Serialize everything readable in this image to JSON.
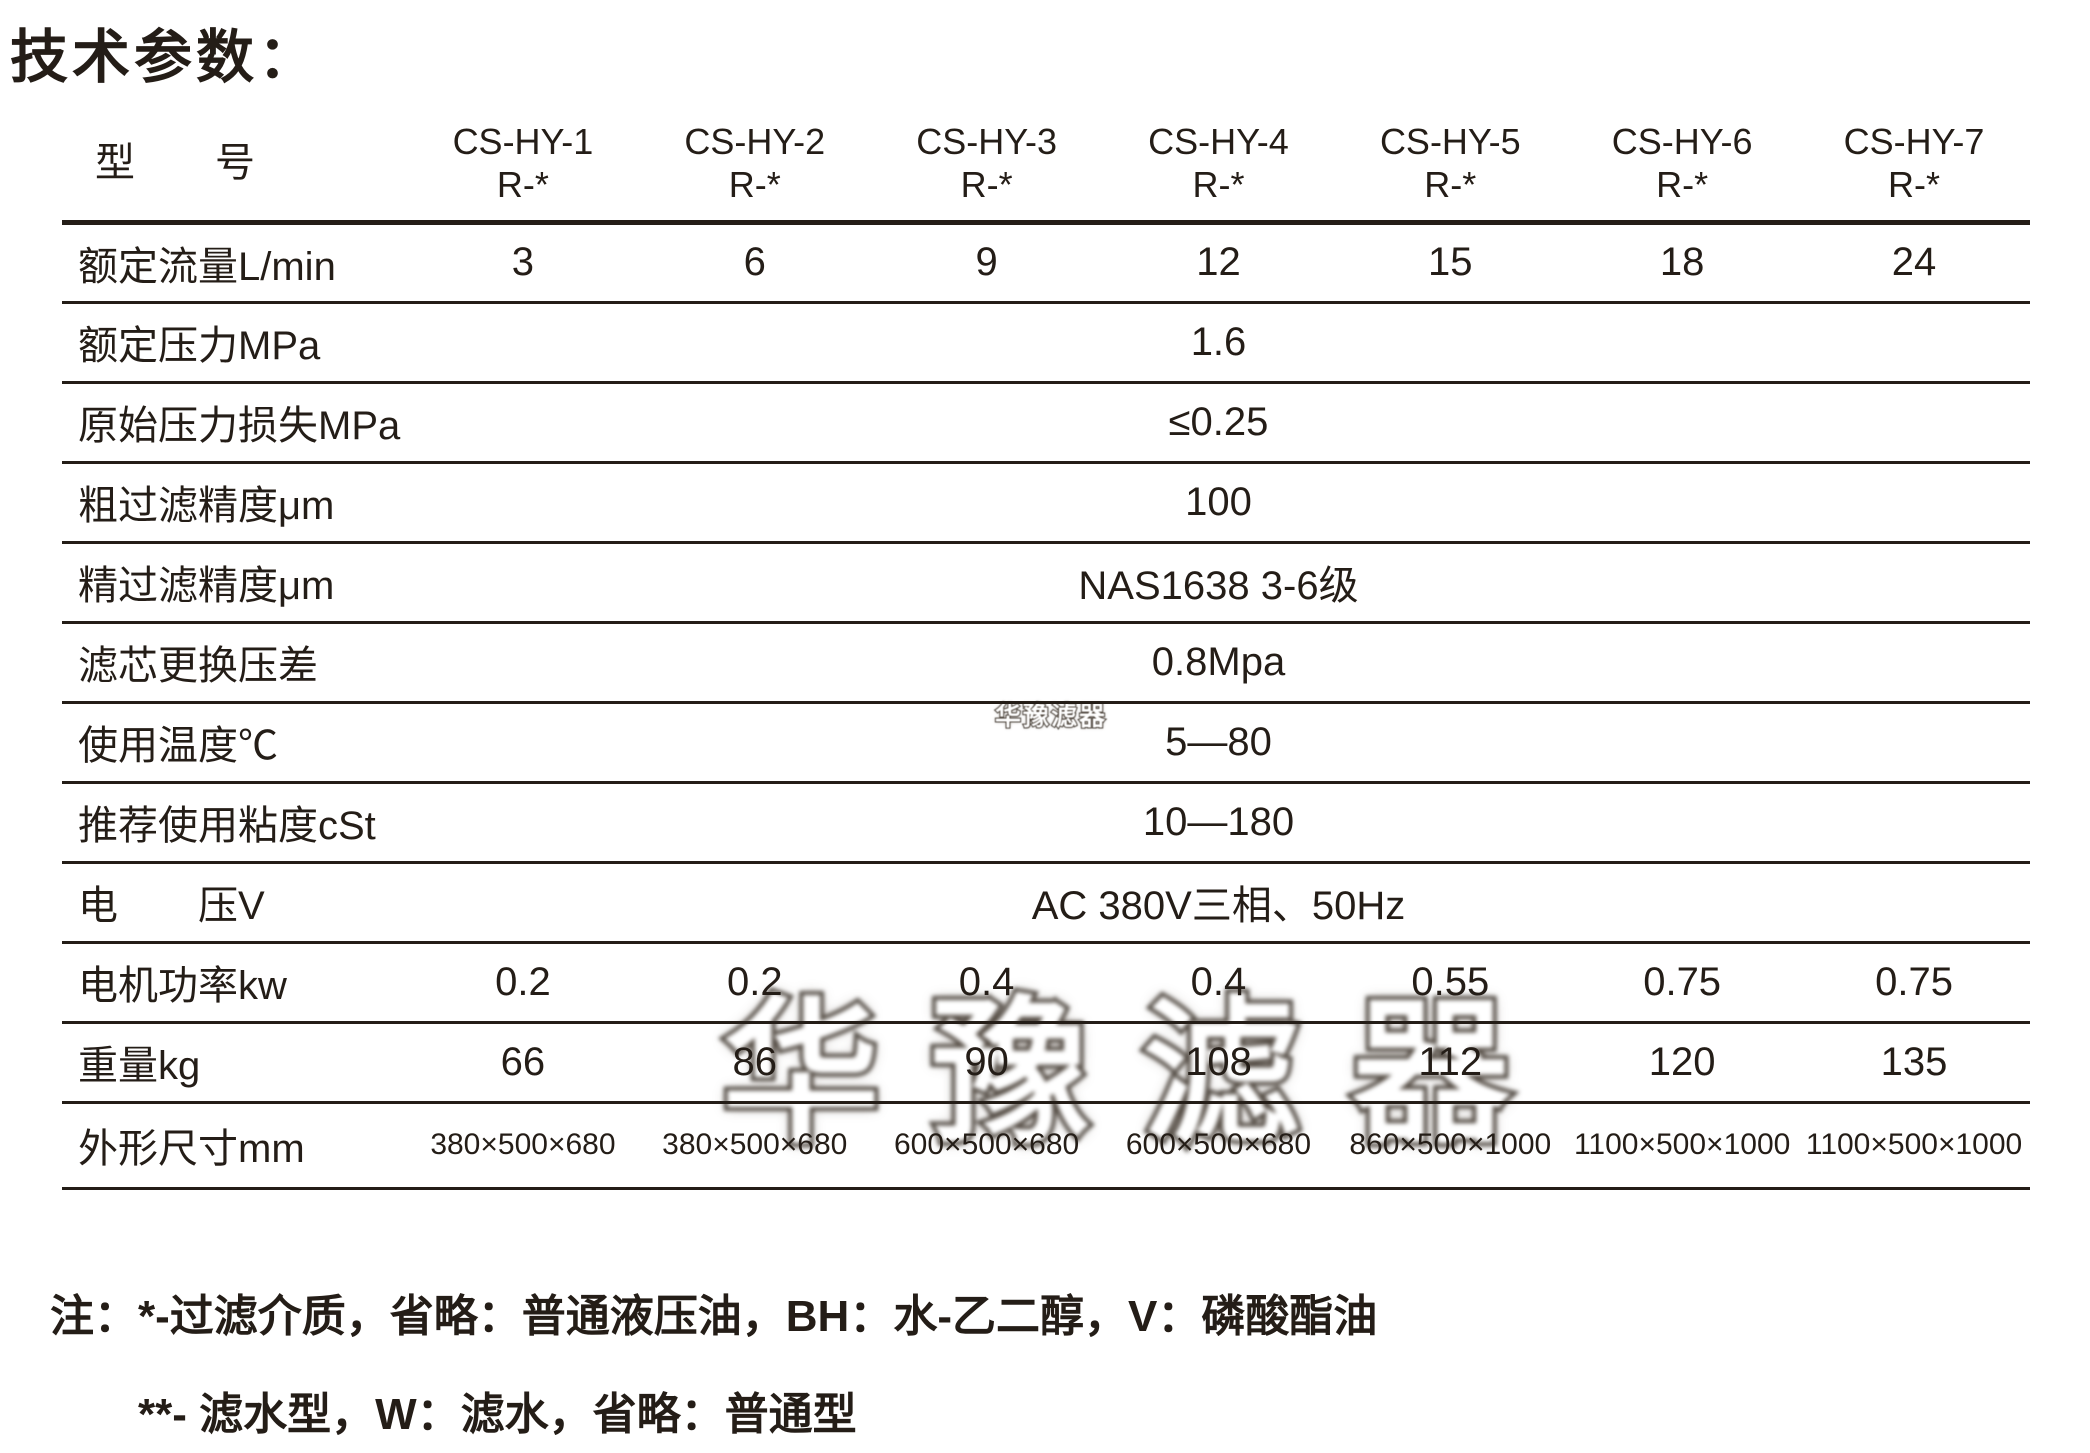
{
  "page_title": "技术参数：",
  "colors": {
    "ink": "#241d17",
    "background": "#ffffff",
    "watermark_fill": "#ffffff",
    "watermark_outline": "#3a322a"
  },
  "table": {
    "model_label": "型　　号",
    "columns": [
      {
        "model": "CS-HY-1",
        "suffix": "R-*"
      },
      {
        "model": "CS-HY-2",
        "suffix": "R-*"
      },
      {
        "model": "CS-HY-3",
        "suffix": "R-*"
      },
      {
        "model": "CS-HY-4",
        "suffix": "R-*"
      },
      {
        "model": "CS-HY-5",
        "suffix": "R-*"
      },
      {
        "model": "CS-HY-6",
        "suffix": "R-*"
      },
      {
        "model": "CS-HY-7",
        "suffix": "R-*"
      }
    ],
    "rows": [
      {
        "label": "额定流量L/min",
        "values": [
          "3",
          "6",
          "9",
          "12",
          "15",
          "18",
          "24"
        ]
      },
      {
        "label": "额定压力MPa",
        "span_value": "1.6"
      },
      {
        "label": "原始压力损失MPa",
        "span_value": "≤0.25"
      },
      {
        "label": "粗过滤精度μm",
        "span_value": "100"
      },
      {
        "label": "精过滤精度μm",
        "span_value": "NAS1638 3-6级"
      },
      {
        "label": "滤芯更换压差",
        "span_value": "0.8Mpa"
      },
      {
        "label": "使用温度℃",
        "span_value": "5—80"
      },
      {
        "label": "推荐使用粘度cSt",
        "span_value": "10—180"
      },
      {
        "label": "电　　压V",
        "span_value": "AC 380V三相、50Hz"
      },
      {
        "label": "电机功率kw",
        "values": [
          "0.2",
          "0.2",
          "0.4",
          "0.4",
          "0.55",
          "0.75",
          "0.75"
        ]
      },
      {
        "label": "重量kg",
        "values": [
          "66",
          "86",
          "90",
          "108",
          "112",
          "120",
          "135"
        ]
      },
      {
        "label": "外形尺寸mm",
        "small": true,
        "values": [
          "380×500×680",
          "380×500×680",
          "600×500×680",
          "600×500×680",
          "860×500×1000",
          "1100×500×1000",
          "1100×500×1000"
        ]
      }
    ]
  },
  "notes": {
    "line1": "注：*-过滤介质，省略：普通液压油，BH：水-乙二醇，V：磷酸酯油",
    "line2": "**- 滤水型，W：滤水，省略：普通型"
  },
  "watermark": {
    "large": "华豫滤器",
    "small": "华豫滤器"
  }
}
